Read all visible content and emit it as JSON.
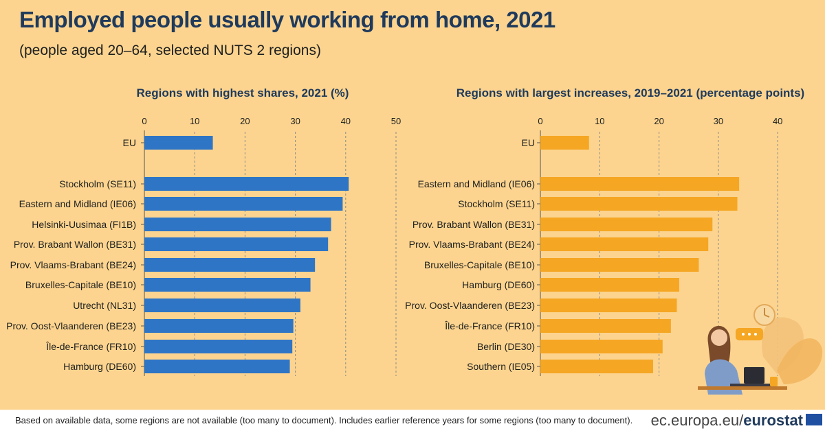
{
  "title": "Employed people usually working from home, 2021",
  "subtitle": "(people aged 20–64, selected NUTS 2 regions)",
  "footnote": "Based on available data, some regions are not available (too many to document). Includes earlier reference years for some regions (too many to document).",
  "source": {
    "prefix": "ec.europa.eu/",
    "brand": "eurostat"
  },
  "colors": {
    "left_bar": "#2e75c6",
    "right_bar": "#f5a623",
    "background": "#fcd48f",
    "title": "#1f3a5c"
  },
  "chart_data": [
    {
      "type": "bar",
      "orientation": "horizontal",
      "title": "Regions with highest shares, 2021 (%)",
      "xlim": [
        0,
        50
      ],
      "xticks": [
        0,
        10,
        20,
        30,
        40,
        50
      ],
      "grid": true,
      "categories": [
        "EU",
        "Stockholm (SE11)",
        "Eastern and Midland (IE06)",
        "Helsinki-Uusimaa (FI1B)",
        "Prov. Brabant Wallon (BE31)",
        "Prov. Vlaams-Brabant (BE24)",
        "Bruxelles-Capitale (BE10)",
        "Utrecht (NL31)",
        "Prov. Oost-Vlaanderen (BE23)",
        "Île-de-France (FR10)",
        "Hamburg (DE60)"
      ],
      "values": [
        13.6,
        40.6,
        39.4,
        37.1,
        36.5,
        33.9,
        33.0,
        31.0,
        29.6,
        29.4,
        28.9
      ]
    },
    {
      "type": "bar",
      "orientation": "horizontal",
      "title": "Regions with largest increases, 2019–2021 (percentage points)",
      "xlim": [
        0,
        40
      ],
      "xticks": [
        0,
        10,
        20,
        30,
        40
      ],
      "grid": true,
      "categories": [
        "EU",
        "Eastern and Midland (IE06)",
        "Stockholm (SE11)",
        "Prov. Brabant Wallon (BE31)",
        "Prov. Vlaams-Brabant (BE24)",
        "Bruxelles-Capitale (BE10)",
        "Hamburg (DE60)",
        "Prov. Oost-Vlaanderen (BE23)",
        "Île-de-France (FR10)",
        "Berlin (DE30)",
        "Southern (IE05)"
      ],
      "values": [
        8.2,
        33.5,
        33.2,
        29.0,
        28.3,
        26.7,
        23.4,
        23.0,
        22.0,
        20.6,
        19.0
      ]
    }
  ]
}
